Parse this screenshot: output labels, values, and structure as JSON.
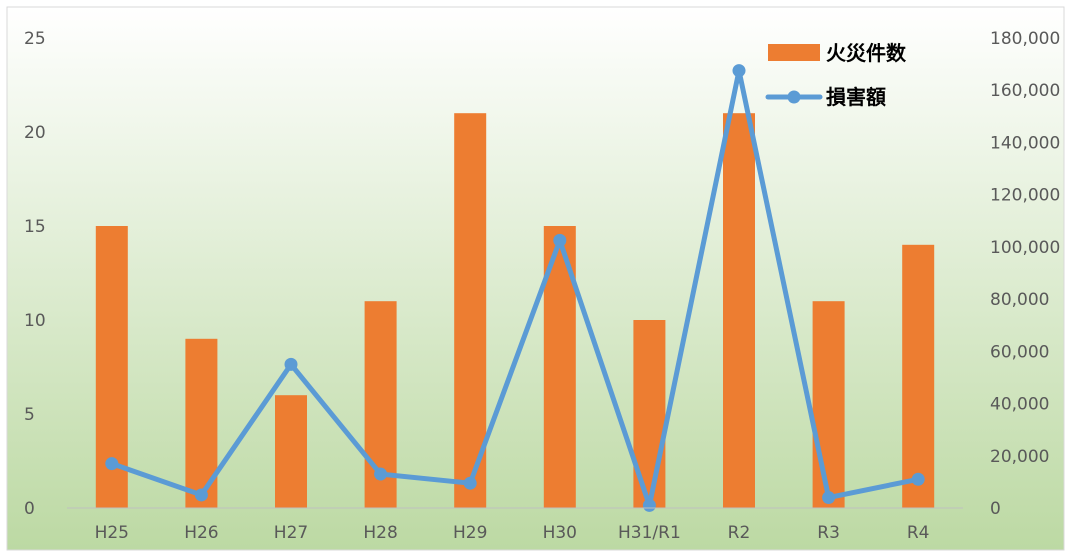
{
  "chart_data": {
    "type": "bar",
    "categories": [
      "H25",
      "H26",
      "H27",
      "H28",
      "H29",
      "H30",
      "H31/R1",
      "R2",
      "R3",
      "R4"
    ],
    "series": [
      {
        "name": "火災件数",
        "type": "bar",
        "axis": "left",
        "color": "#ED7D31",
        "values": [
          15,
          9,
          6,
          11,
          21,
          15,
          10,
          21,
          11,
          14
        ]
      },
      {
        "name": "損害額",
        "type": "line",
        "axis": "right",
        "color": "#5B9BD5",
        "values": [
          17000,
          5000,
          55000,
          13000,
          9500,
          102500,
          1000,
          167500,
          4000,
          11000
        ]
      }
    ],
    "y_left": {
      "ylim": [
        0,
        25
      ],
      "ticks": [
        0,
        5,
        10,
        15,
        20,
        25
      ],
      "tick_labels": [
        "0",
        "5",
        "10",
        "15",
        "20",
        "25"
      ]
    },
    "y_right": {
      "ylim": [
        0,
        180000
      ],
      "ticks": [
        0,
        20000,
        40000,
        60000,
        80000,
        100000,
        120000,
        140000,
        160000,
        180000
      ],
      "tick_labels": [
        "0",
        "20,000",
        "40,000",
        "60,000",
        "80,000",
        "100,000",
        "120,000",
        "140,000",
        "160,000",
        "180,000"
      ]
    },
    "legend": {
      "position": "top-right"
    },
    "grid": false,
    "background": {
      "top": "#ffffff",
      "bottom": "#bcd9a3"
    }
  }
}
